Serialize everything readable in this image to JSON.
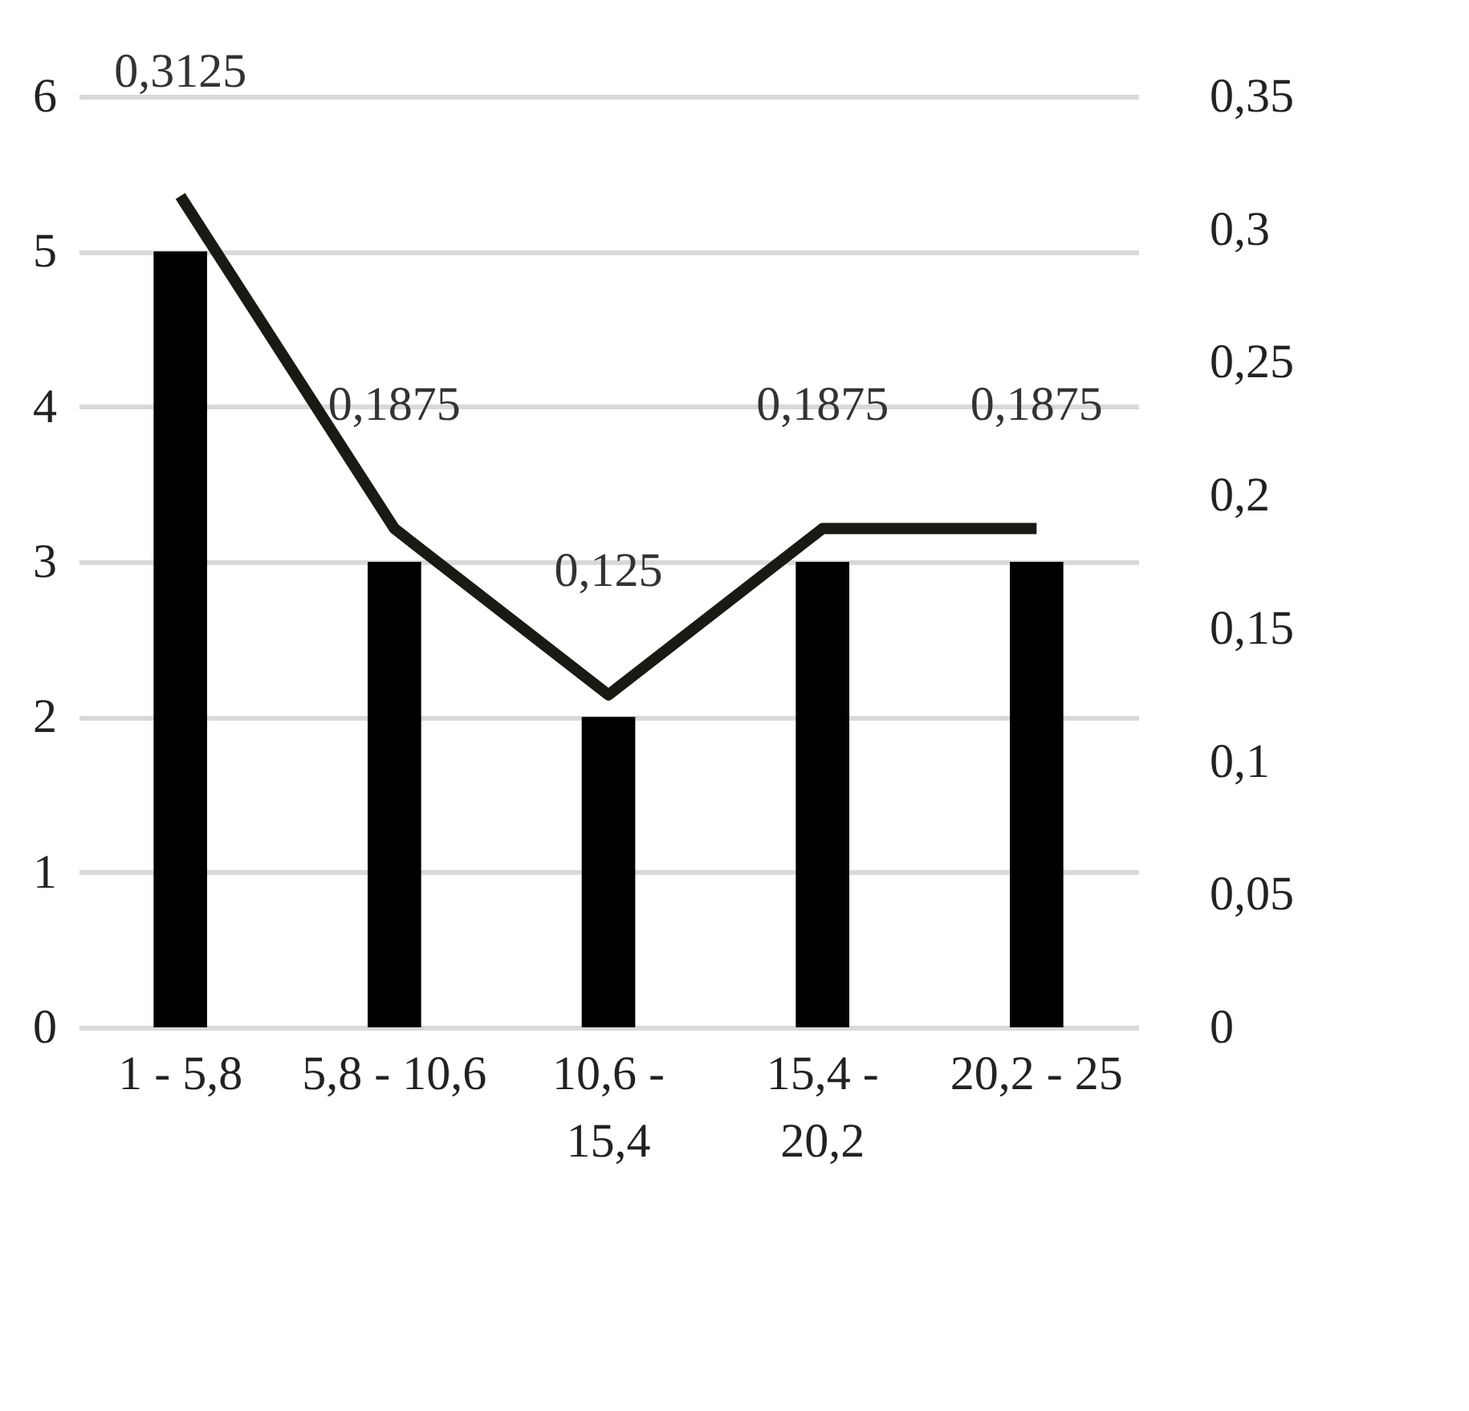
{
  "chart_data": {
    "type": "bar",
    "categories": [
      "1 - 5,8",
      "5,8 - 10,6",
      "10,6 - 15,4",
      "15,4 - 20,2",
      "20,2 - 25"
    ],
    "series": [
      {
        "color": "#000000",
        "values": [
          5,
          3,
          2,
          3,
          3
        ]
      },
      {
        "type": "line",
        "axis": "y2",
        "color": "#1a1a14",
        "values": [
          0.3125,
          0.1875,
          0.125,
          0.1875,
          0.1875
        ],
        "value_labels": [
          "0,3125",
          "0,1875",
          "0,125",
          "0,1875",
          "0,1875"
        ]
      }
    ],
    "ylim": [
      0,
      6
    ],
    "yticks": [
      0,
      1,
      2,
      3,
      4,
      5,
      6
    ],
    "y2lim": [
      0,
      0.35
    ],
    "y2ticks": [
      0,
      {
        "value": 0.05,
        "label": "0,05"
      },
      {
        "value": 0.1,
        "label": "0,1"
      },
      {
        "value": 0.15,
        "label": "0,15"
      },
      {
        "value": 0.2,
        "label": "0,2"
      },
      {
        "value": 0.25,
        "label": "0,25"
      },
      {
        "value": 0.3,
        "label": "0,3"
      },
      {
        "value": 0.35,
        "label": "0,35"
      }
    ],
    "grid": "y",
    "marker": "none",
    "line_style": "solid"
  }
}
